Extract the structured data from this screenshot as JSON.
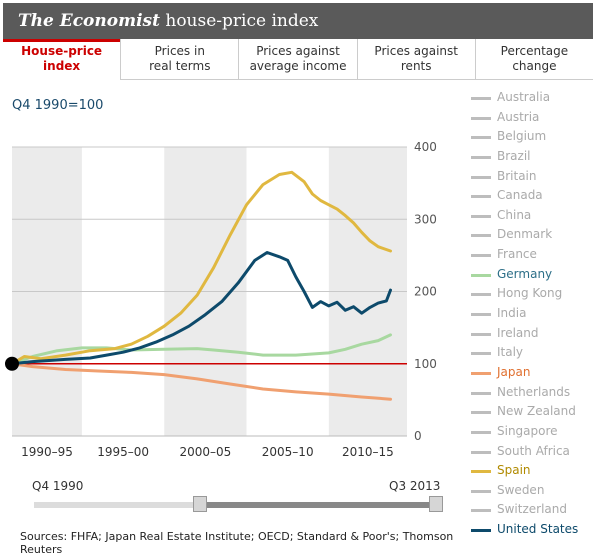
{
  "header": {
    "brand": "The Economist",
    "title_rest": " house-price index"
  },
  "tabs": [
    {
      "label": "House-price\nindex",
      "active": true
    },
    {
      "label": "Prices in\nreal terms",
      "active": false
    },
    {
      "label": "Prices against\naverage income",
      "active": false
    },
    {
      "label": "Prices against\nrents",
      "active": false
    },
    {
      "label": "Percentage\nchange",
      "active": false
    }
  ],
  "subtitle": "Q4 1990=100",
  "legend": [
    {
      "label": "Australia",
      "active": false,
      "color": "#bdbdbd"
    },
    {
      "label": "Austria",
      "active": false,
      "color": "#bdbdbd"
    },
    {
      "label": "Belgium",
      "active": false,
      "color": "#bdbdbd"
    },
    {
      "label": "Brazil",
      "active": false,
      "color": "#bdbdbd"
    },
    {
      "label": "Britain",
      "active": false,
      "color": "#bdbdbd"
    },
    {
      "label": "Canada",
      "active": false,
      "color": "#bdbdbd"
    },
    {
      "label": "China",
      "active": false,
      "color": "#bdbdbd"
    },
    {
      "label": "Denmark",
      "active": false,
      "color": "#bdbdbd"
    },
    {
      "label": "France",
      "active": false,
      "color": "#bdbdbd"
    },
    {
      "label": "Germany",
      "active": true,
      "color": "#a8d8a0",
      "text_color": "#2d6f88"
    },
    {
      "label": "Hong Kong",
      "active": false,
      "color": "#bdbdbd"
    },
    {
      "label": "India",
      "active": false,
      "color": "#bdbdbd"
    },
    {
      "label": "Ireland",
      "active": false,
      "color": "#bdbdbd"
    },
    {
      "label": "Italy",
      "active": false,
      "color": "#bdbdbd"
    },
    {
      "label": "Japan",
      "active": true,
      "color": "#f0a070",
      "text_color": "#e07030"
    },
    {
      "label": "Netherlands",
      "active": false,
      "color": "#bdbdbd"
    },
    {
      "label": "New Zealand",
      "active": false,
      "color": "#bdbdbd"
    },
    {
      "label": "Singapore",
      "active": false,
      "color": "#bdbdbd"
    },
    {
      "label": "South Africa",
      "active": false,
      "color": "#bdbdbd"
    },
    {
      "label": "Spain",
      "active": true,
      "color": "#e0b840",
      "text_color": "#b08a00"
    },
    {
      "label": "Sweden",
      "active": false,
      "color": "#bdbdbd"
    },
    {
      "label": "Switzerland",
      "active": false,
      "color": "#bdbdbd"
    },
    {
      "label": "United States",
      "active": true,
      "color": "#0d4a6b",
      "text_color": "#0d4a6b"
    }
  ],
  "slider": {
    "start_label": "Q4 1990",
    "end_label": "Q3 2013"
  },
  "sources": "Sources: FHFA; Japan Real Estate Institute; OECD; Standard & Poor's; Thomson Reuters",
  "chart_data": {
    "type": "line",
    "ylim": [
      0,
      400
    ],
    "y_ticks": [
      0,
      100,
      200,
      300,
      400
    ],
    "xlim": [
      1990.75,
      2014.75
    ],
    "x_tick_labels": [
      "1990–95",
      "1995–00",
      "2000–05",
      "2005–10",
      "2010–15"
    ],
    "x_bands": [
      [
        1990,
        1995
      ],
      [
        1995,
        2000
      ],
      [
        2000,
        2005
      ],
      [
        2005,
        2010
      ],
      [
        2010,
        2015
      ]
    ],
    "baseline": 100,
    "baseline_color": "#cc0000",
    "base_point": {
      "x": 1990.75,
      "y": 100
    },
    "series": [
      {
        "name": "Japan",
        "color": "#f0a070",
        "x": [
          1990.75,
          1992,
          1994,
          1996,
          1998,
          2000,
          2002,
          2004,
          2006,
          2008,
          2010,
          2012,
          2013.75
        ],
        "y": [
          100,
          96,
          92,
          90,
          88,
          85,
          79,
          72,
          65,
          61,
          58,
          54,
          51
        ]
      },
      {
        "name": "Germany",
        "color": "#a8d8a0",
        "x": [
          1990.75,
          1992,
          1993.5,
          1995,
          1996.5,
          1998,
          2000,
          2002,
          2003,
          2004.5,
          2006,
          2008,
          2010,
          2011,
          2012,
          2013,
          2013.75
        ],
        "y": [
          100,
          110,
          118,
          122,
          122,
          119,
          120,
          121,
          119,
          116,
          112,
          112,
          115,
          120,
          127,
          132,
          140
        ]
      },
      {
        "name": "Spain",
        "color": "#e0b840",
        "x": [
          1990.75,
          1991.5,
          1992.5,
          1994,
          1995.5,
          1997,
          1998,
          1999,
          2000,
          2001,
          2002,
          2003,
          2004,
          2005,
          2006,
          2007,
          2007.75,
          2008.5,
          2009,
          2009.5,
          2010,
          2010.5,
          2011,
          2011.5,
          2012,
          2012.5,
          2013,
          2013.75
        ],
        "y": [
          100,
          110,
          107,
          112,
          118,
          121,
          127,
          138,
          152,
          170,
          195,
          233,
          278,
          320,
          348,
          362,
          365,
          352,
          335,
          326,
          320,
          314,
          305,
          295,
          282,
          270,
          262,
          256
        ]
      },
      {
        "name": "United States",
        "color": "#0d4a6b",
        "x": [
          1990.75,
          1992,
          1994,
          1995.5,
          1996.5,
          1997.5,
          1998.5,
          1999.5,
          2000.5,
          2001.5,
          2002.5,
          2003.5,
          2004.5,
          2005.5,
          2006.25,
          2007,
          2007.5,
          2008,
          2008.5,
          2009,
          2009.5,
          2010,
          2010.5,
          2011,
          2011.5,
          2012,
          2012.5,
          2013,
          2013.5,
          2013.75
        ],
        "y": [
          100,
          103,
          106,
          108,
          112,
          116,
          122,
          130,
          140,
          152,
          168,
          186,
          212,
          243,
          254,
          248,
          243,
          220,
          200,
          178,
          186,
          180,
          185,
          174,
          179,
          170,
          178,
          184,
          187,
          202
        ]
      }
    ]
  }
}
